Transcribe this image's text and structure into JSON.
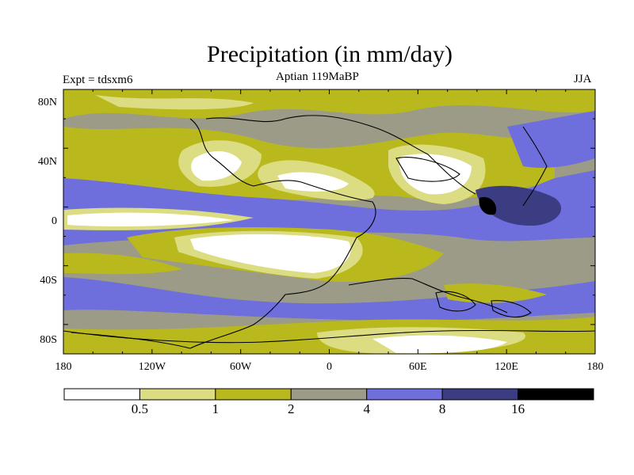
{
  "title": "Precipitation (in mm/day)",
  "left_label": "Expt = tdsxm6",
  "center_label": "Aptian   119MaBP",
  "right_label": "JJA",
  "x_ticks": [
    "180",
    "120W",
    "60W",
    "0",
    "60E",
    "120E",
    "180"
  ],
  "y_ticks": [
    "80N",
    "40N",
    "0",
    "40S",
    "80S"
  ],
  "colorbar": {
    "labels": [
      "0.5",
      "1",
      "2",
      "4",
      "8",
      "16"
    ],
    "colors": [
      "#ffffff",
      "#dcdc82",
      "#b9b91e",
      "#9b9b87",
      "#6e6edc",
      "#3c3c82",
      "#000000"
    ]
  }
}
